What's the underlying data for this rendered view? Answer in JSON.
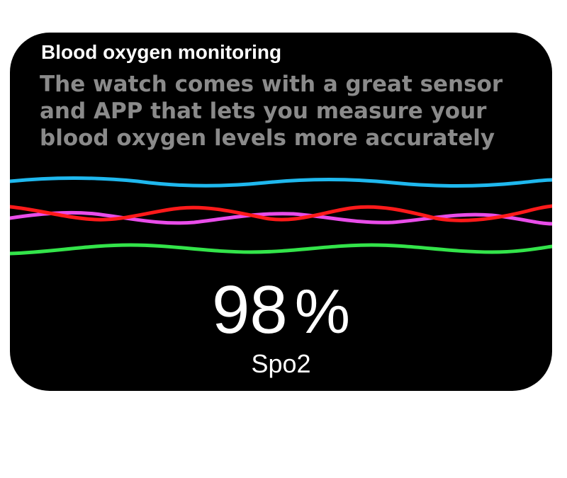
{
  "title": "Blood oxygen monitoring",
  "description": "The watch comes with a great sensor and APP that lets you measure your blood oxygen levels more accurately",
  "reading": {
    "value": "98",
    "unit": "%",
    "label": "Spo2"
  },
  "colors": {
    "background": "#000000",
    "wave_cyan": "#1fb8ee",
    "wave_red": "#ff1a1a",
    "wave_magenta": "#e94de9",
    "wave_green": "#33e44a"
  }
}
